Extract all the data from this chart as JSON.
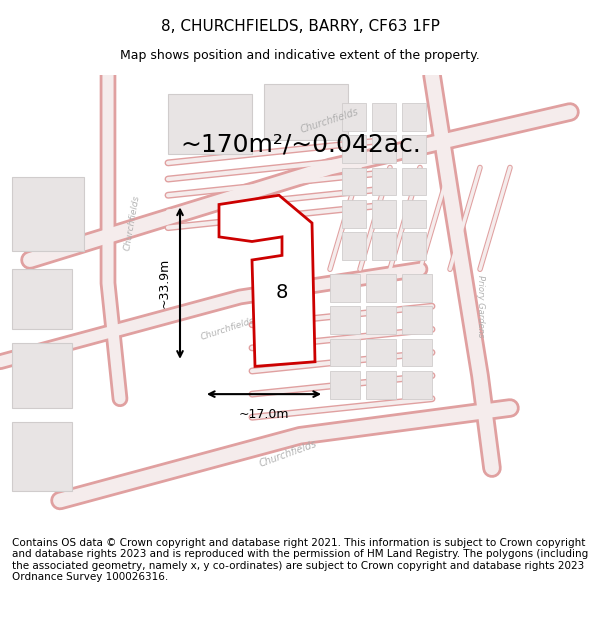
{
  "title": "8, CHURCHFIELDS, BARRY, CF63 1FP",
  "subtitle": "Map shows position and indicative extent of the property.",
  "area_label": "~170m²/~0.042ac.",
  "width_label": "~17.0m",
  "height_label": "~33.9m",
  "plot_number": "8",
  "footer_text": "Contains OS data © Crown copyright and database right 2021. This information is subject to Crown copyright and database rights 2023 and is reproduced with the permission of HM Land Registry. The polygons (including the associated geometry, namely x, y co-ordinates) are subject to Crown copyright and database rights 2023 Ordnance Survey 100026316.",
  "background_color": "#f5f5f5",
  "map_bg": "#f0eeee",
  "road_color": "#e8b0b0",
  "road_fill": "#f8f0f0",
  "building_color": "#d0cccc",
  "building_fill": "#e8e4e4",
  "plot_outline_color": "#cc0000",
  "plot_fill_color": "#ffffff",
  "title_fontsize": 11,
  "subtitle_fontsize": 9,
  "area_fontsize": 22,
  "footer_fontsize": 7.5
}
